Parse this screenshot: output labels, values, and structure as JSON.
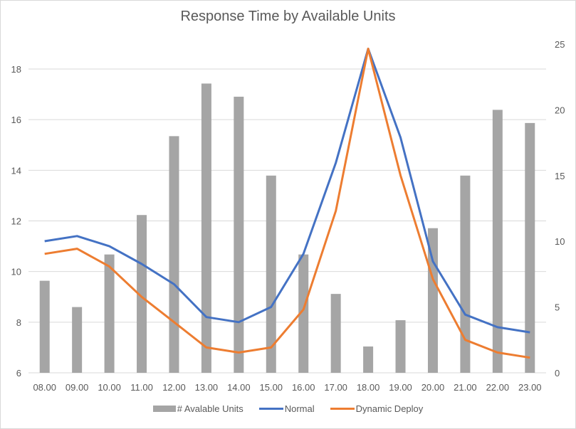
{
  "chart_data": {
    "type": "bar+line",
    "title": "Response Time by Available Units",
    "categories": [
      "08.00",
      "09.00",
      "10.00",
      "11.00",
      "12.00",
      "13.00",
      "14.00",
      "15.00",
      "16.00",
      "17.00",
      "18.00",
      "19.00",
      "20.00",
      "21.00",
      "22.00",
      "23.00"
    ],
    "series": [
      {
        "name": "# Avalable Units",
        "type": "bar",
        "axis": "right",
        "color": "#a5a5a5",
        "values": [
          7,
          5,
          9,
          12,
          18,
          22,
          21,
          15,
          9,
          6,
          2,
          4,
          11,
          15,
          20,
          19
        ]
      },
      {
        "name": "Normal",
        "type": "line",
        "axis": "left",
        "color": "#4472c4",
        "values": [
          11.2,
          11.4,
          11.0,
          10.3,
          9.5,
          8.2,
          8.0,
          8.6,
          10.7,
          14.3,
          18.8,
          15.3,
          10.4,
          8.3,
          7.8,
          7.6
        ]
      },
      {
        "name": "Dynamic Deploy",
        "type": "line",
        "axis": "left",
        "color": "#ed7d31",
        "values": [
          10.7,
          10.9,
          10.2,
          9.0,
          8.0,
          7.0,
          6.8,
          7.0,
          8.5,
          12.4,
          18.8,
          13.8,
          9.7,
          7.3,
          6.8,
          6.6
        ]
      }
    ],
    "left_axis": {
      "min": 6,
      "max": 18,
      "ticks": [
        6,
        8,
        10,
        12,
        14,
        16,
        18
      ]
    },
    "right_axis": {
      "min": 0,
      "max": 25,
      "ticks": [
        0,
        5,
        10,
        15,
        20,
        25
      ]
    },
    "xlabel": "",
    "ylabel": "",
    "y2label": "",
    "grid": true,
    "legend_position": "bottom"
  },
  "legend": {
    "bar_label": "# Avalable Units",
    "normal_label": "Normal",
    "dynamic_label": "Dynamic Deploy"
  },
  "colors": {
    "bar": "#a5a5a5",
    "normal": "#4472c4",
    "dynamic": "#ed7d31",
    "grid": "#d9d9d9",
    "text": "#595959"
  }
}
